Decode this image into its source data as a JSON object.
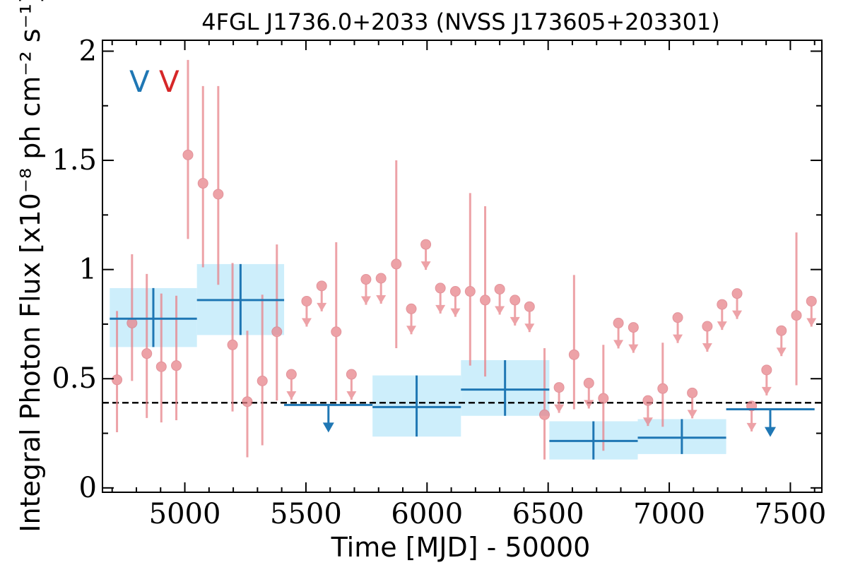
{
  "chart_data": {
    "type": "scatter",
    "title": "4FGL J1736.0+2033 (NVSS J173605+203301)",
    "xlabel": "Time [MJD] - 50000",
    "ylabel": "Integral Photon Flux [x10⁻⁸ ph cm⁻² s⁻¹]",
    "xlim": [
      4660,
      7630
    ],
    "ylim": [
      -0.02,
      2.05
    ],
    "x_ticks": [
      5000,
      5500,
      6000,
      6500,
      7000,
      7500
    ],
    "y_ticks": [
      0,
      0.5,
      1,
      1.5,
      2
    ],
    "y_tick_labels": [
      "0",
      "0.5",
      "1",
      "1.5",
      "2"
    ],
    "grid": false,
    "markers_text": [
      {
        "text": "V",
        "color": "#1f77b4"
      },
      {
        "text": "V",
        "color": "#d62728"
      }
    ],
    "reference_line": {
      "y": 0.39,
      "style": "dashed",
      "color": "#000000"
    },
    "series": [
      {
        "color": "#1f77b4",
        "band_color": "#cdeefb",
        "bins": [
          {
            "x0": 4690,
            "x1": 5050,
            "x": 4870,
            "y": 0.775,
            "ylo": 0.645,
            "yhi": 0.915,
            "upper_limit": false
          },
          {
            "x0": 5050,
            "x1": 5410,
            "x": 5230,
            "y": 0.86,
            "ylo": 0.7,
            "yhi": 1.025,
            "upper_limit": false
          },
          {
            "x0": 5410,
            "x1": 5775,
            "x": 5593,
            "y": 0.38,
            "upper_limit": true
          },
          {
            "x0": 5775,
            "x1": 6140,
            "x": 5957,
            "y": 0.37,
            "ylo": 0.235,
            "yhi": 0.515,
            "upper_limit": false
          },
          {
            "x0": 6140,
            "x1": 6505,
            "x": 6322,
            "y": 0.45,
            "ylo": 0.33,
            "yhi": 0.585,
            "upper_limit": false
          },
          {
            "x0": 6505,
            "x1": 6870,
            "x": 6687,
            "y": 0.215,
            "ylo": 0.13,
            "yhi": 0.305,
            "upper_limit": false
          },
          {
            "x0": 6870,
            "x1": 7235,
            "x": 7052,
            "y": 0.23,
            "ylo": 0.155,
            "yhi": 0.315,
            "upper_limit": false
          },
          {
            "x0": 7235,
            "x1": 7600,
            "x": 7417,
            "y": 0.36,
            "upper_limit": true
          }
        ]
      },
      {
        "color": "#e8838a",
        "points": [
          {
            "x": 4720,
            "y": 0.495,
            "ylo": 0.255,
            "yhi": 0.81
          },
          {
            "x": 4782,
            "y": 0.755,
            "ylo": 0.49,
            "yhi": 1.07
          },
          {
            "x": 4843,
            "y": 0.615,
            "ylo": 0.32,
            "yhi": 0.98
          },
          {
            "x": 4903,
            "y": 0.555,
            "ylo": 0.3,
            "yhi": 0.89
          },
          {
            "x": 4965,
            "y": 0.56,
            "ylo": 0.31,
            "yhi": 0.88
          },
          {
            "x": 5013,
            "y": 1.525,
            "ylo": 1.14,
            "yhi": 1.96
          },
          {
            "x": 5075,
            "y": 1.395,
            "ylo": 1.01,
            "yhi": 1.84
          },
          {
            "x": 5138,
            "y": 1.345,
            "ylo": 0.93,
            "yhi": 1.84
          },
          {
            "x": 5197,
            "y": 0.655,
            "ylo": 0.35,
            "yhi": 1.03
          },
          {
            "x": 5258,
            "y": 0.395,
            "ylo": 0.14,
            "yhi": 0.72
          },
          {
            "x": 5320,
            "y": 0.49,
            "ylo": 0.195,
            "yhi": 0.885
          },
          {
            "x": 5380,
            "y": 0.715,
            "ylo": 0.4,
            "yhi": 1.115
          },
          {
            "x": 5440,
            "y": 0.52,
            "upper_limit": true
          },
          {
            "x": 5503,
            "y": 0.855,
            "upper_limit": true
          },
          {
            "x": 5565,
            "y": 0.925,
            "upper_limit": true
          },
          {
            "x": 5625,
            "y": 0.715,
            "ylo": 0.4,
            "yhi": 1.125
          },
          {
            "x": 5688,
            "y": 0.52,
            "upper_limit": true
          },
          {
            "x": 5748,
            "y": 0.955,
            "upper_limit": true
          },
          {
            "x": 5810,
            "y": 0.96,
            "upper_limit": true
          },
          {
            "x": 5873,
            "y": 1.025,
            "ylo": 0.64,
            "yhi": 1.5
          },
          {
            "x": 5935,
            "y": 0.82,
            "upper_limit": true
          },
          {
            "x": 5995,
            "y": 1.115,
            "upper_limit": true
          },
          {
            "x": 6055,
            "y": 0.915,
            "upper_limit": true
          },
          {
            "x": 6117,
            "y": 0.9,
            "upper_limit": true
          },
          {
            "x": 6178,
            "y": 0.9,
            "ylo": 0.56,
            "yhi": 1.35
          },
          {
            "x": 6240,
            "y": 0.86,
            "ylo": 0.51,
            "yhi": 1.29
          },
          {
            "x": 6300,
            "y": 0.91,
            "upper_limit": true
          },
          {
            "x": 6363,
            "y": 0.86,
            "upper_limit": true
          },
          {
            "x": 6423,
            "y": 0.83,
            "upper_limit": true
          },
          {
            "x": 6485,
            "y": 0.335,
            "ylo": 0.13,
            "yhi": 0.64
          },
          {
            "x": 6545,
            "y": 0.46,
            "upper_limit": true
          },
          {
            "x": 6607,
            "y": 0.61,
            "ylo": 0.36,
            "yhi": 0.975
          },
          {
            "x": 6668,
            "y": 0.48,
            "upper_limit": true
          },
          {
            "x": 6728,
            "y": 0.41,
            "ylo": 0.17,
            "yhi": 0.655
          },
          {
            "x": 6790,
            "y": 0.755,
            "upper_limit": true
          },
          {
            "x": 6852,
            "y": 0.735,
            "upper_limit": true
          },
          {
            "x": 6912,
            "y": 0.4,
            "upper_limit": true
          },
          {
            "x": 6973,
            "y": 0.455,
            "ylo": 0.28,
            "yhi": 0.665
          },
          {
            "x": 7035,
            "y": 0.78,
            "upper_limit": true
          },
          {
            "x": 7095,
            "y": 0.435,
            "upper_limit": true
          },
          {
            "x": 7157,
            "y": 0.74,
            "upper_limit": true
          },
          {
            "x": 7218,
            "y": 0.84,
            "upper_limit": true
          },
          {
            "x": 7280,
            "y": 0.89,
            "upper_limit": true
          },
          {
            "x": 7340,
            "y": 0.375,
            "upper_limit": true
          },
          {
            "x": 7402,
            "y": 0.54,
            "upper_limit": true
          },
          {
            "x": 7463,
            "y": 0.72,
            "upper_limit": true
          },
          {
            "x": 7525,
            "y": 0.79,
            "ylo": 0.47,
            "yhi": 1.17
          },
          {
            "x": 7587,
            "y": 0.855,
            "upper_limit": true
          }
        ]
      }
    ]
  }
}
